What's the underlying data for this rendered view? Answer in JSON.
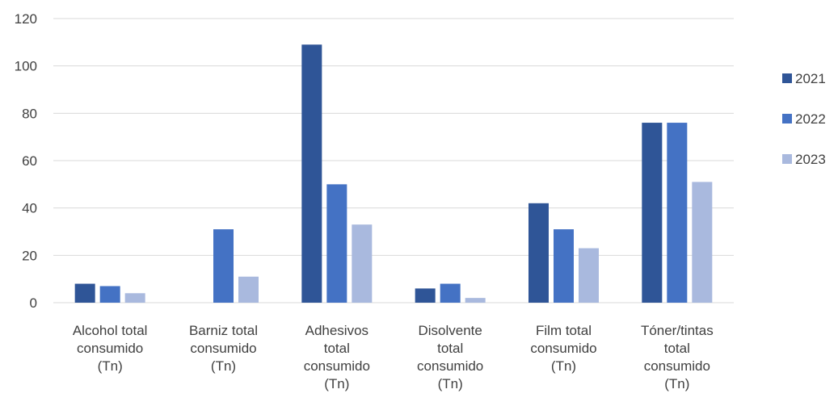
{
  "chart_data": {
    "type": "bar",
    "categories": [
      [
        "Alcohol total",
        "consumido",
        "(Tn)"
      ],
      [
        "Barniz total",
        "consumido",
        "(Tn)"
      ],
      [
        "Adhesivos",
        "total",
        "consumido",
        "(Tn)"
      ],
      [
        "Disolvente",
        "total",
        "consumido",
        "(Tn)"
      ],
      [
        "Film total",
        "consumido",
        "(Tn)"
      ],
      [
        "Tóner/tintas",
        "total",
        "consumido",
        "(Tn)"
      ]
    ],
    "series": [
      {
        "name": "2021",
        "color": "#2F5597",
        "values": [
          8,
          0,
          109,
          6,
          42,
          76
        ]
      },
      {
        "name": "2022",
        "color": "#4472C4",
        "values": [
          7,
          31,
          50,
          8,
          31,
          76
        ]
      },
      {
        "name": "2023",
        "color": "#A9B9DE",
        "values": [
          4,
          11,
          33,
          2,
          23,
          51
        ]
      }
    ],
    "ylim": [
      0,
      120
    ],
    "yticks": [
      "0",
      "20",
      "40",
      "60",
      "80",
      "100",
      "120"
    ],
    "title": "",
    "xlabel": "",
    "ylabel": "",
    "grid": true,
    "legend_position": "right"
  }
}
